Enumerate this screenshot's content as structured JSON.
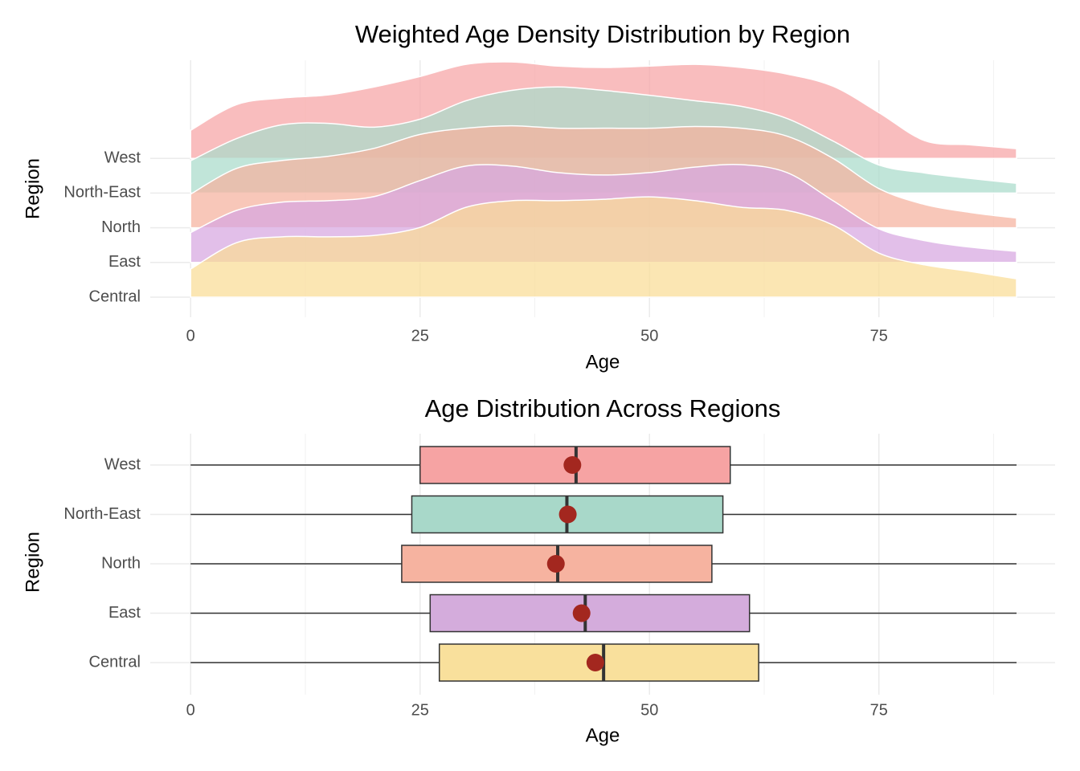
{
  "chart_data": [
    {
      "type": "ridgeline",
      "title": "Weighted Age Density Distribution by Region",
      "xlabel": "Age",
      "ylabel": "Region",
      "x": [
        0,
        5,
        10,
        15,
        20,
        25,
        30,
        35,
        40,
        45,
        50,
        55,
        60,
        65,
        70,
        75,
        80,
        85,
        90
      ],
      "series": [
        {
          "name": "Central",
          "color": "#f9dc96",
          "values": [
            0.81,
            1.57,
            1.74,
            1.74,
            1.78,
            2.01,
            2.59,
            2.78,
            2.78,
            2.82,
            2.89,
            2.78,
            2.59,
            2.5,
            2.08,
            1.27,
            0.93,
            0.74,
            0.53
          ]
        },
        {
          "name": "East",
          "color": "#d7a6e0",
          "values": [
            0.86,
            1.5,
            1.74,
            1.78,
            1.9,
            2.36,
            2.78,
            2.78,
            2.59,
            2.52,
            2.59,
            2.75,
            2.82,
            2.59,
            1.78,
            0.97,
            0.63,
            0.44,
            0.32
          ]
        },
        {
          "name": "North",
          "color": "#f5b29e",
          "values": [
            0.97,
            1.71,
            1.94,
            2.06,
            2.29,
            2.69,
            2.87,
            2.94,
            2.87,
            2.87,
            2.87,
            2.92,
            2.87,
            2.64,
            2.0,
            1.13,
            0.67,
            0.44,
            0.28
          ]
        },
        {
          "name": "North-East",
          "color": "#a9dbcb",
          "values": [
            0.93,
            1.57,
            1.97,
            2.01,
            1.9,
            2.13,
            2.66,
            2.96,
            3.06,
            2.96,
            2.82,
            2.66,
            2.5,
            2.15,
            1.5,
            0.81,
            0.58,
            0.42,
            0.28
          ]
        },
        {
          "name": "West",
          "color": "#f7a3a5",
          "values": [
            0.81,
            1.55,
            1.74,
            1.83,
            2.06,
            2.36,
            2.71,
            2.78,
            2.66,
            2.62,
            2.66,
            2.71,
            2.62,
            2.43,
            2.08,
            1.32,
            0.51,
            0.39,
            0.28
          ]
        }
      ],
      "xlim": [
        -4.4,
        94.2
      ],
      "xticks": [
        0,
        25,
        50,
        75
      ],
      "xminor": [
        12.5,
        37.5,
        62.5,
        87.5
      ],
      "grid": true
    },
    {
      "type": "box",
      "title": "Age Distribution Across Regions",
      "xlabel": "Age",
      "ylabel": "Region",
      "series": [
        {
          "name": "Central",
          "color": "#f9e09c",
          "min": 0,
          "q1": 27.1,
          "median": 45.0,
          "q3": 61.9,
          "max": 90,
          "mean": 44.1
        },
        {
          "name": "East",
          "color": "#d4acdc",
          "min": 0,
          "q1": 26.1,
          "median": 43.0,
          "q3": 60.9,
          "max": 90,
          "mean": 42.6
        },
        {
          "name": "North",
          "color": "#f6b3a0",
          "min": 0,
          "q1": 23.0,
          "median": 40.0,
          "q3": 56.8,
          "max": 90,
          "mean": 39.8
        },
        {
          "name": "North-East",
          "color": "#a8d8c9",
          "min": 0,
          "q1": 24.1,
          "median": 41.0,
          "q3": 58.0,
          "max": 90,
          "mean": 41.1
        },
        {
          "name": "West",
          "color": "#f6a3a3",
          "min": 0,
          "q1": 25.0,
          "median": 42.0,
          "q3": 58.8,
          "max": 90,
          "mean": 41.6
        }
      ],
      "mean_color": "#a3271f",
      "xlim": [
        -4.4,
        94.2
      ],
      "xticks": [
        0,
        25,
        50,
        75
      ],
      "xminor": [
        12.5,
        37.5,
        62.5,
        87.5
      ],
      "grid": true
    }
  ]
}
